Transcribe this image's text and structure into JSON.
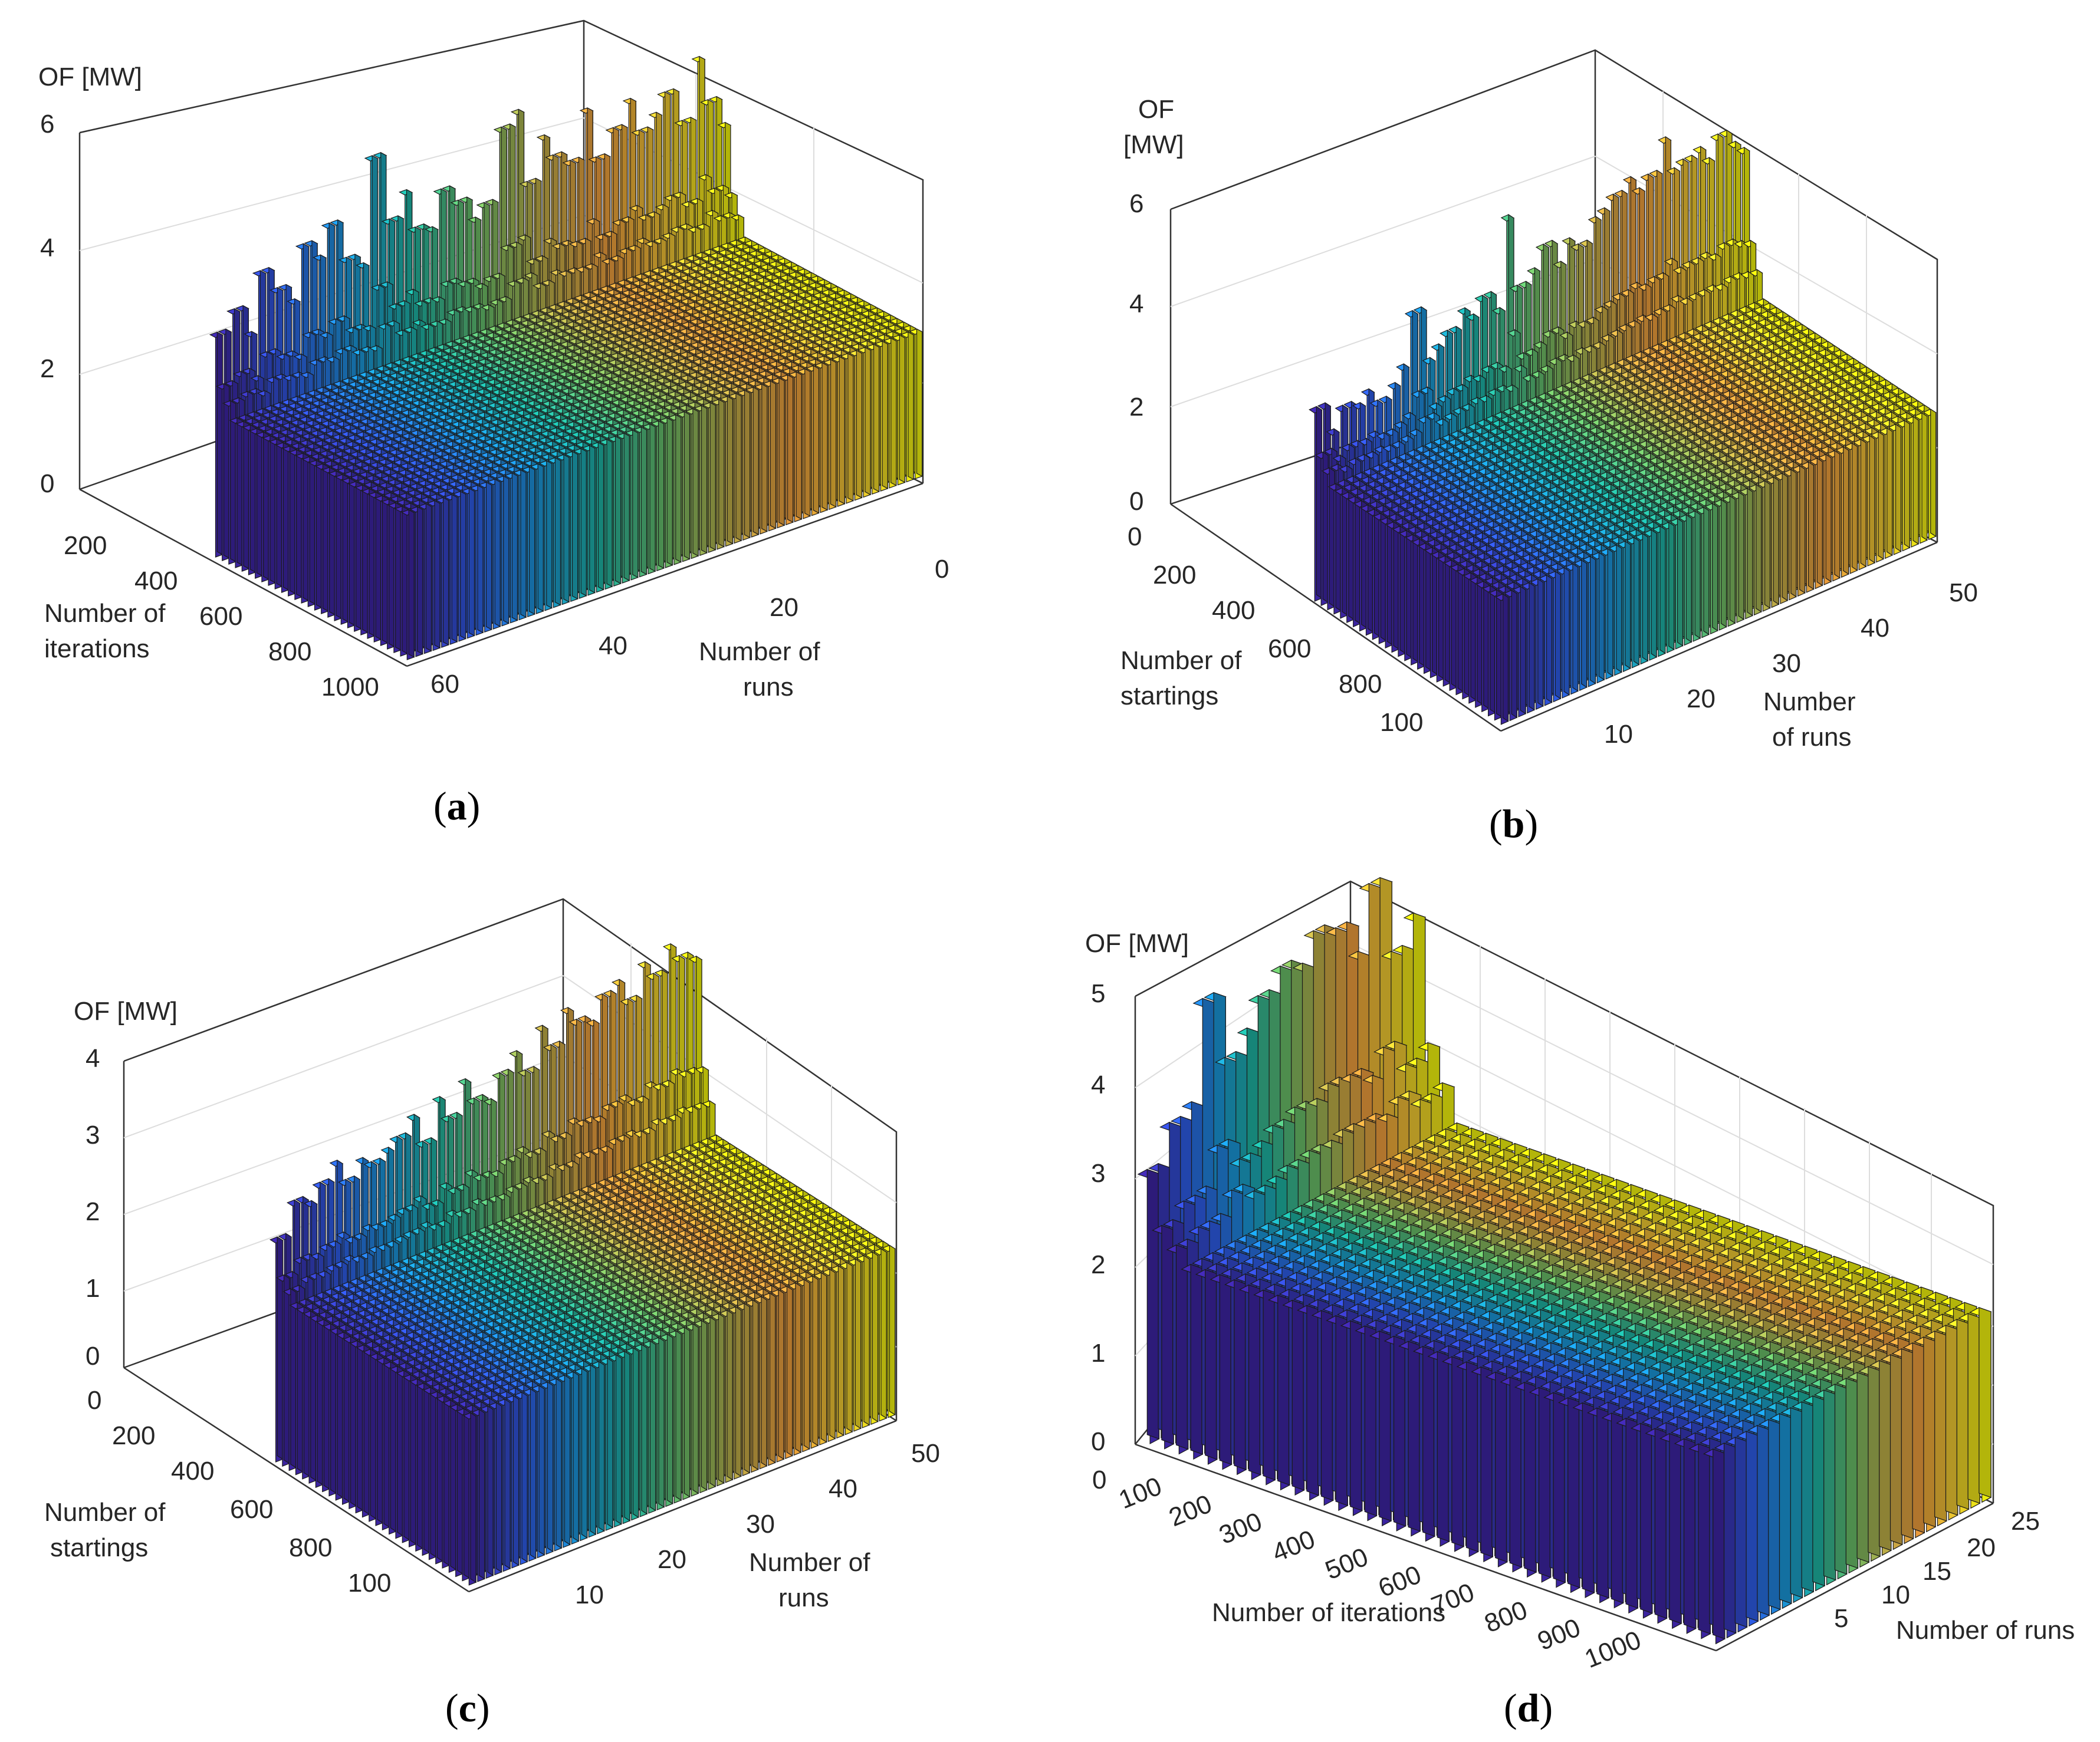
{
  "figure": {
    "panels": [
      "a",
      "b",
      "c",
      "d"
    ]
  },
  "colormap": [
    "#3e26a8",
    "#2f60ef",
    "#1b9be0",
    "#1fb9a7",
    "#6cc46b",
    "#c4b44a",
    "#f6a23e",
    "#f8d034",
    "#f9fb0e"
  ],
  "chart_data": [
    {
      "panel": "a",
      "type": "bar3d",
      "caption": "(a)",
      "zlabel": "OF [MW]",
      "xlabel_lines": [
        "Number of",
        "iterations"
      ],
      "ylabel_lines": [
        "Number of",
        "runs"
      ],
      "x_ticks": [
        "200",
        "400",
        "600",
        "800",
        "1000"
      ],
      "y_ticks": [
        "60",
        "40",
        "20",
        "0"
      ],
      "z_ticks": [
        "0",
        "2",
        "4",
        "6"
      ],
      "zlim": [
        0,
        6
      ],
      "runs": 60,
      "iterations": 1000,
      "plateau": 2.5,
      "edge_peaks": [
        3.8,
        4.1,
        3.6,
        4.6,
        4.2,
        3.9,
        4.8,
        4.5,
        5.0,
        4.3,
        4.1,
        5.9,
        4.7,
        5.1,
        4.4,
        4.3,
        4.9,
        4.6,
        4.2,
        4.4,
        5.6,
        5.8,
        4.5,
        5.2,
        4.8,
        4.6,
        5.4,
        4.5,
        4.9,
        5.3,
        4.7,
        4.9,
        5.2,
        4.6,
        5.6,
        4.8,
        4.3
      ]
    },
    {
      "panel": "b",
      "type": "bar3d",
      "caption": "(b)",
      "zlabel_lines": [
        "OF",
        "[MW]"
      ],
      "xlabel_lines": [
        "Number of",
        "startings"
      ],
      "ylabel_lines": [
        "Number",
        "of runs"
      ],
      "x_ticks": [
        "0",
        "200",
        "400",
        "600",
        "800",
        "100"
      ],
      "y_ticks": [
        "10",
        "20",
        "30",
        "40",
        "50"
      ],
      "z_ticks": [
        "0",
        "2",
        "4",
        "6"
      ],
      "zlim": [
        0,
        6
      ],
      "runs": 50,
      "startings": 1000,
      "plateau": 2.5,
      "edge_peaks": [
        3.8,
        3.2,
        3.6,
        3.5,
        3.7,
        3.4,
        3.6,
        3.9,
        4.9,
        3.8,
        4.0,
        4.2,
        4.5,
        4.3,
        4.6,
        4.2,
        6.0,
        4.5,
        4.7,
        5.1,
        4.6,
        5.0,
        4.8,
        5.2,
        5.3,
        5.5,
        5.7,
        5.4,
        5.6,
        6.2,
        5.5,
        5.6,
        5.7,
        5.4,
        5.8,
        5.5,
        5.3
      ]
    },
    {
      "panel": "c",
      "type": "bar3d",
      "caption": "(c)",
      "zlabel": "OF [MW]",
      "xlabel_lines": [
        "Number of",
        "startings"
      ],
      "ylabel_lines": [
        "Number of",
        "runs"
      ],
      "x_ticks": [
        "0",
        "200",
        "400",
        "600",
        "800",
        "100"
      ],
      "y_ticks": [
        "10",
        "20",
        "30",
        "40",
        "50"
      ],
      "z_ticks": [
        "0",
        "1",
        "2",
        "3",
        "4"
      ],
      "zlim": [
        0,
        4
      ],
      "runs": 50,
      "startings": 1000,
      "plateau": 2.2,
      "edge_peaks": [
        2.9,
        3.3,
        3.2,
        3.4,
        3.6,
        3.3,
        3.5,
        3.4,
        3.5,
        3.6,
        3.8,
        3.4,
        3.9,
        3.6,
        4.0,
        3.7,
        3.6,
        3.9,
        4.1,
        3.8,
        4.3,
        4.0,
        4.4,
        4.2,
        4.1,
        4.4,
        4.5,
        4.2,
        4.6,
        4.4,
        4.7,
        4.5,
        4.4
      ]
    },
    {
      "panel": "d",
      "type": "bar3d",
      "caption": "(d)",
      "zlabel": "OF [MW]",
      "xlabel": "Number of iterations",
      "ylabel": "Number of runs",
      "x_ticks": [
        "0",
        "100",
        "200",
        "300",
        "400",
        "500",
        "600",
        "700",
        "800",
        "900",
        "1000"
      ],
      "y_ticks": [
        "5",
        "10",
        "15",
        "20",
        "25"
      ],
      "z_ticks": [
        "0",
        "1",
        "2",
        "3",
        "4",
        "5"
      ],
      "zlim": [
        0,
        5
      ],
      "runs": 25,
      "iterations": 1000,
      "plateau": 2.1,
      "edge_peaks": [
        3.0,
        3.4,
        3.5,
        4.6,
        3.8,
        4.0,
        4.3,
        4.5,
        4.4,
        4.7,
        4.6,
        4.2,
        4.9,
        4.0,
        4.3
      ]
    }
  ]
}
